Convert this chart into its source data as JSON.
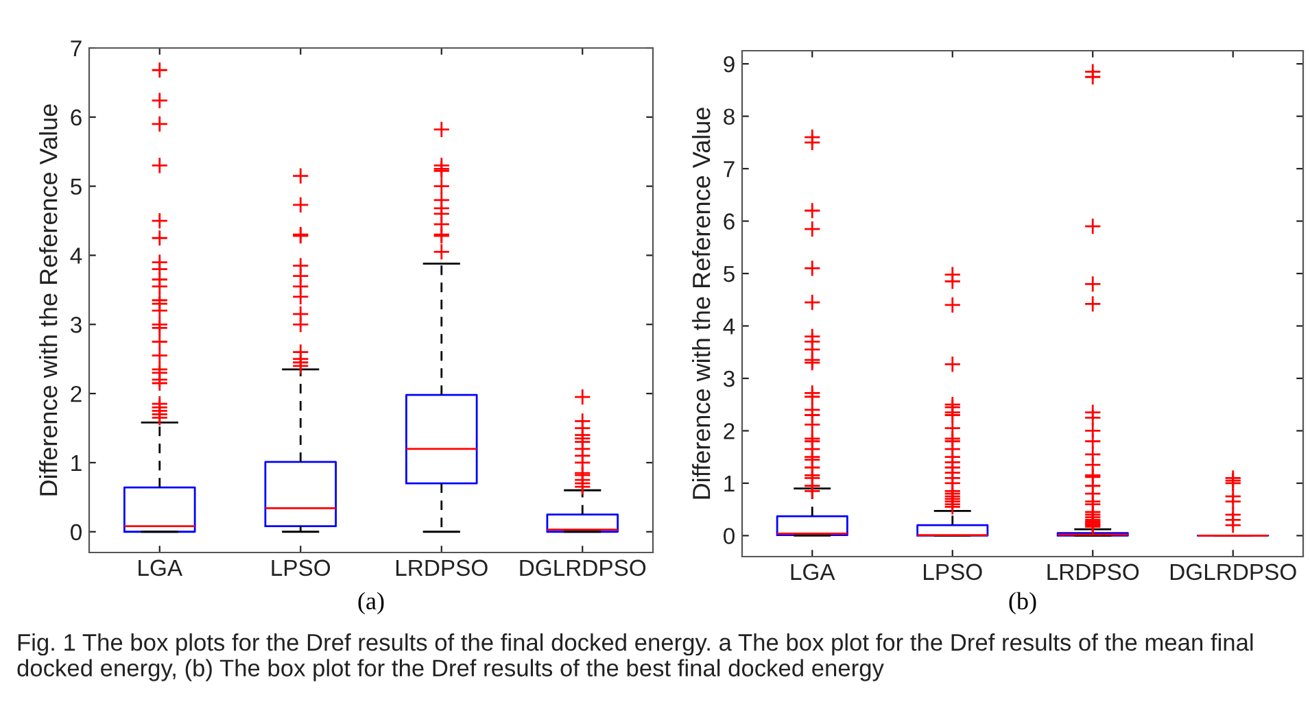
{
  "chart_data": [
    {
      "type": "box",
      "categories": [
        "LGA",
        "LPSO",
        "LRDPSO",
        "DGLRDPSO"
      ],
      "ylabel": "Difference with the Reference Value",
      "ylim": [
        -0.3,
        7
      ],
      "yticks": [
        0,
        1,
        2,
        3,
        4,
        5,
        6,
        7
      ],
      "grid": false,
      "annotations": [
        "(a)",
        "Fig. 1 The box plots for the Dref results of the final docked energy. a The box plot for the Dref results of the mean final docked energy, (b) The box plot for the Dref results of the best final docked energy"
      ],
      "series": [
        {
          "color": "#0000ff",
          "boxes": [
            {
              "low": 0,
              "q1": 0,
              "median": 0.08,
              "q3": 0.64,
              "high": 1.58,
              "outliers": [
                6.68,
                6.24,
                5.9,
                5.3,
                4.5,
                4.25,
                3.9,
                3.8,
                3.65,
                3.55,
                3.35,
                3.3,
                3.2,
                3.0,
                2.95,
                2.75,
                2.55,
                2.35,
                2.3,
                2.2,
                2.15,
                1.85,
                1.8,
                1.75,
                1.7,
                1.65
              ]
            },
            {
              "low": 0,
              "q1": 0.08,
              "median": 0.34,
              "q3": 1.01,
              "high": 2.35,
              "outliers": [
                5.15,
                4.73,
                4.3,
                4.28,
                3.85,
                3.7,
                3.55,
                3.4,
                3.15,
                3.0,
                2.6,
                2.5,
                2.45,
                2.4
              ]
            },
            {
              "low": 0,
              "q1": 0.7,
              "median": 1.2,
              "q3": 1.98,
              "high": 3.88,
              "outliers": [
                5.82,
                5.3,
                5.25,
                5.22,
                5.0,
                4.8,
                4.68,
                4.6,
                4.45,
                4.3,
                4.28,
                4.05
              ]
            },
            {
              "low": 0,
              "q1": 0,
              "median": 0.03,
              "q3": 0.25,
              "high": 0.6,
              "outliers": [
                1.95,
                1.6,
                1.5,
                1.4,
                1.35,
                1.3,
                1.2,
                1.1,
                1.0,
                0.85,
                0.82,
                0.75,
                0.7,
                0.65
              ]
            }
          ]
        }
      ]
    },
    {
      "type": "box",
      "categories": [
        "LGA",
        "LPSO",
        "LRDPSO",
        "DGLRDPSO"
      ],
      "ylabel": "Difference with the Reference Value",
      "ylim": [
        -0.4,
        9.25
      ],
      "yticks": [
        0,
        1,
        2,
        3,
        4,
        5,
        6,
        7,
        8,
        9
      ],
      "grid": false,
      "annotations": [
        "(b)"
      ],
      "series": [
        {
          "color": "#0000ff",
          "boxes": [
            {
              "low": 0,
              "q1": 0.01,
              "median": 0.04,
              "q3": 0.37,
              "high": 0.9,
              "outliers": [
                7.6,
                7.5,
                6.2,
                5.85,
                5.1,
                4.45,
                3.8,
                3.7,
                3.55,
                3.35,
                3.3,
                2.72,
                2.65,
                2.4,
                2.3,
                2.12,
                1.85,
                1.8,
                1.65,
                1.5,
                1.45,
                1.3,
                1.15,
                1.1,
                0.95,
                0.85
              ]
            },
            {
              "low": 0,
              "q1": 0,
              "median": 0.01,
              "q3": 0.2,
              "high": 0.47,
              "outliers": [
                4.98,
                4.85,
                4.4,
                3.27,
                2.5,
                2.45,
                2.35,
                2.3,
                2.05,
                1.85,
                1.8,
                1.65,
                1.5,
                1.4,
                1.3,
                1.2,
                1.1,
                1.0,
                0.85,
                0.8,
                0.75,
                0.7,
                0.65,
                0.6,
                0.55
              ]
            },
            {
              "low": 0,
              "q1": 0,
              "median": 0.02,
              "q3": 0.05,
              "high": 0.12,
              "outliers": [
                8.85,
                8.75,
                5.9,
                4.8,
                4.42,
                2.35,
                2.25,
                2.0,
                1.8,
                1.55,
                1.35,
                1.15,
                1.12,
                0.95,
                0.8,
                0.65,
                0.6,
                0.45,
                0.4,
                0.35,
                0.3,
                0.27,
                0.25,
                0.22,
                0.2,
                0.17
              ]
            },
            {
              "low": 0,
              "q1": 0,
              "median": 0,
              "q3": 0,
              "high": 0,
              "outliers": [
                1.1,
                1.05,
                1.0,
                0.75,
                0.65,
                0.4,
                0.3,
                0.2
              ]
            }
          ]
        }
      ]
    }
  ]
}
